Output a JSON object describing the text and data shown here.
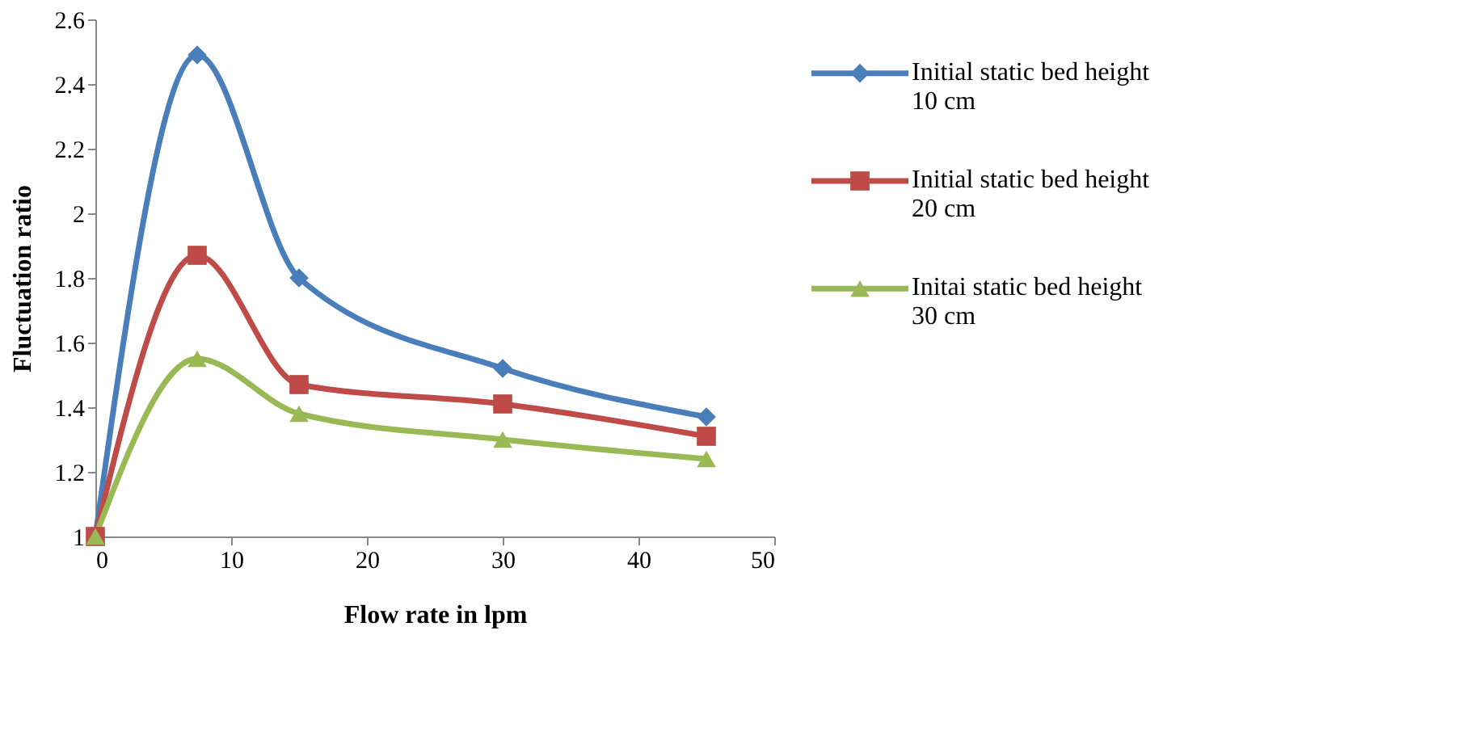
{
  "chart_data": {
    "type": "line",
    "xlabel": "Flow rate in lpm",
    "ylabel": "Fluctuation ratio",
    "x": [
      0,
      7.5,
      15,
      30,
      45
    ],
    "series": [
      {
        "name": "Initial static bed height 10 cm",
        "color": "#4a7ebb",
        "marker": "diamond",
        "values": [
          1,
          2.49,
          1.8,
          1.52,
          1.37
        ]
      },
      {
        "name": "Initial static bed height 20 cm",
        "color": "#be4b48",
        "marker": "square",
        "values": [
          1,
          1.87,
          1.47,
          1.41,
          1.31
        ]
      },
      {
        "name": "Initai static bed height 30 cm",
        "color": "#98b954",
        "marker": "triangle",
        "values": [
          1,
          1.55,
          1.38,
          1.3,
          1.24
        ]
      }
    ],
    "xlim": [
      0,
      50
    ],
    "xticks": [
      0,
      10,
      20,
      30,
      40,
      50
    ],
    "ylim": [
      1,
      2.6
    ],
    "yticks": [
      1,
      1.2,
      1.4,
      1.6,
      1.8,
      2,
      2.2,
      2.4,
      2.6
    ],
    "grid": false,
    "legend": "right",
    "line_style": "solid"
  }
}
